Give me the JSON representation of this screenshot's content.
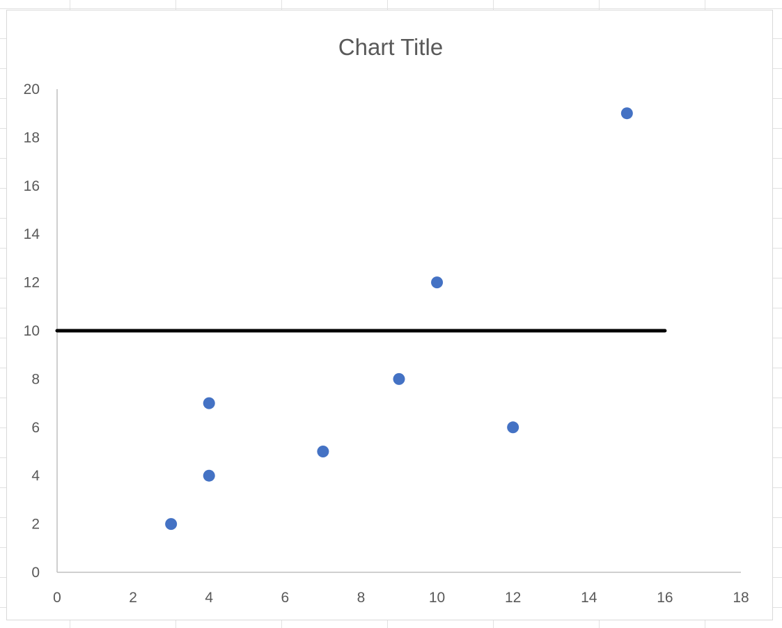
{
  "chart_data": {
    "type": "scatter",
    "title": "Chart Title",
    "xlabel": "",
    "ylabel": "",
    "xlim": [
      0,
      18
    ],
    "ylim": [
      0,
      20
    ],
    "x_ticks": [
      "0",
      "2",
      "4",
      "6",
      "8",
      "10",
      "12",
      "14",
      "16",
      "18"
    ],
    "y_ticks": [
      "0",
      "2",
      "4",
      "6",
      "8",
      "10",
      "12",
      "14",
      "16",
      "18",
      "20"
    ],
    "grid": false,
    "legend": "none",
    "series": [
      {
        "color": "#4472c4",
        "marker": "circle",
        "points": [
          {
            "x": 3,
            "y": 2
          },
          {
            "x": 4,
            "y": 4
          },
          {
            "x": 4,
            "y": 7
          },
          {
            "x": 7,
            "y": 5
          },
          {
            "x": 9,
            "y": 8
          },
          {
            "x": 10,
            "y": 12
          },
          {
            "x": 12,
            "y": 6
          },
          {
            "x": 15,
            "y": 19
          }
        ]
      }
    ],
    "reference_line": {
      "y": 10,
      "x_start": 0,
      "x_end": 16,
      "color": "#000000"
    }
  }
}
